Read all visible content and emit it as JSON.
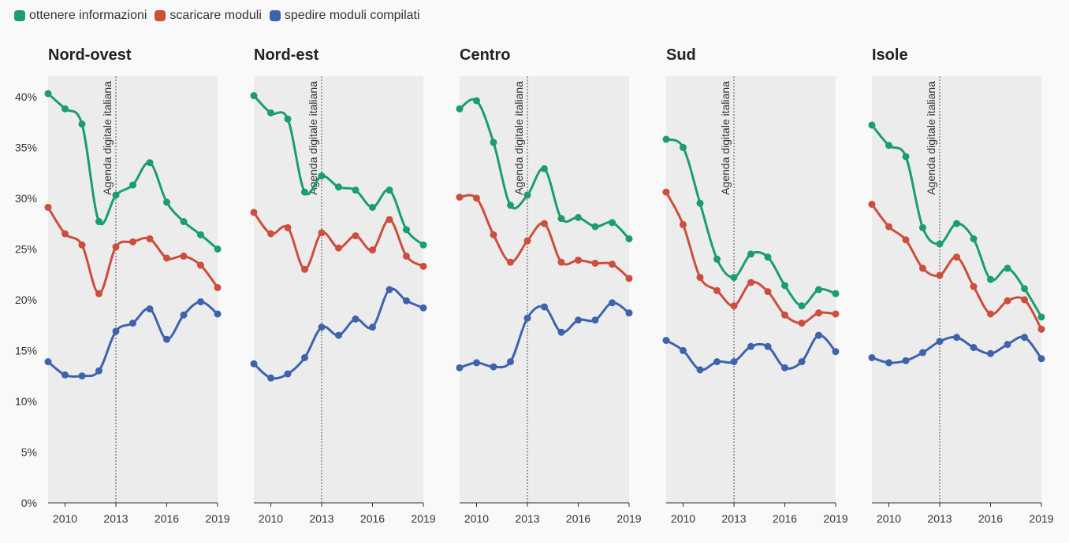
{
  "chart_data": {
    "type": "line",
    "y_ticks": [
      "0%",
      "5%",
      "10%",
      "15%",
      "20%",
      "25%",
      "30%",
      "35%",
      "40%"
    ],
    "ylim": [
      0,
      42
    ],
    "x_ticks": [
      2010,
      2013,
      2016,
      2019
    ],
    "xlim": [
      2009,
      2019
    ],
    "annotation": {
      "x": 2013,
      "label": "Agenda digitale italiana"
    },
    "legend_position": "top-left",
    "series": [
      {
        "name": "ottenere informazioni",
        "color": "#1a9e6e"
      },
      {
        "name": "scaricare moduli",
        "color": "#cc4e3c"
      },
      {
        "name": "spedire moduli compilati",
        "color": "#3e63ad"
      }
    ],
    "x": [
      2009,
      2010,
      2011,
      2012,
      2013,
      2014,
      2015,
      2016,
      2017,
      2018,
      2019
    ],
    "panels": [
      {
        "title": "Nord-ovest",
        "values": [
          [
            40.3,
            38.8,
            37.3,
            27.7,
            30.3,
            31.3,
            33.5,
            29.6,
            27.7,
            26.4,
            25.0
          ],
          [
            29.1,
            26.5,
            25.4,
            20.6,
            25.2,
            25.7,
            26.0,
            24.1,
            24.3,
            23.4,
            21.2
          ],
          [
            13.9,
            12.6,
            12.5,
            13.0,
            16.9,
            17.7,
            19.1,
            16.1,
            18.5,
            19.8,
            18.6
          ]
        ]
      },
      {
        "title": "Nord-est",
        "values": [
          [
            40.1,
            38.4,
            37.8,
            30.6,
            32.2,
            31.1,
            30.8,
            29.1,
            30.8,
            26.9,
            25.4
          ],
          [
            28.6,
            26.5,
            27.1,
            23.0,
            26.6,
            25.1,
            26.3,
            24.9,
            27.9,
            24.3,
            23.3
          ],
          [
            13.7,
            12.3,
            12.7,
            14.3,
            17.3,
            16.5,
            18.1,
            17.3,
            21.0,
            19.9,
            19.2
          ]
        ]
      },
      {
        "title": "Centro",
        "values": [
          [
            38.8,
            39.6,
            35.5,
            29.3,
            30.3,
            32.9,
            28.0,
            28.1,
            27.2,
            27.6,
            26.0
          ],
          [
            30.1,
            30.0,
            26.4,
            23.7,
            25.8,
            27.5,
            23.7,
            23.9,
            23.6,
            23.5,
            22.1
          ],
          [
            13.3,
            13.8,
            13.4,
            13.9,
            18.2,
            19.3,
            16.8,
            18.0,
            18.0,
            19.7,
            18.7
          ]
        ]
      },
      {
        "title": "Sud",
        "values": [
          [
            35.8,
            35.0,
            29.5,
            24.0,
            22.2,
            24.5,
            24.2,
            21.4,
            19.4,
            21.0,
            20.6
          ],
          [
            30.6,
            27.4,
            22.2,
            20.9,
            19.4,
            21.7,
            20.8,
            18.5,
            17.7,
            18.7,
            18.6
          ],
          [
            16.0,
            15.0,
            13.1,
            13.9,
            13.9,
            15.4,
            15.4,
            13.3,
            13.9,
            16.5,
            14.9
          ]
        ]
      },
      {
        "title": "Isole",
        "values": [
          [
            37.2,
            35.2,
            34.1,
            27.1,
            25.5,
            27.5,
            26.0,
            22.0,
            23.1,
            21.1,
            18.3
          ],
          [
            29.4,
            27.2,
            25.9,
            23.1,
            22.4,
            24.2,
            21.3,
            18.6,
            19.9,
            20.0,
            17.1
          ],
          [
            14.3,
            13.8,
            14.0,
            14.8,
            15.9,
            16.3,
            15.3,
            14.7,
            15.6,
            16.3,
            14.2
          ]
        ]
      }
    ]
  }
}
